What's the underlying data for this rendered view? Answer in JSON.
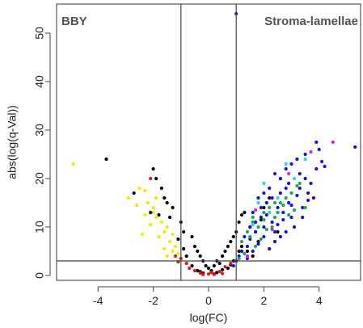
{
  "chart_data": {
    "type": "scatter",
    "title": "",
    "xlabel": "log(FC)",
    "ylabel": "abs(log(q-Val))",
    "xlim": [
      -5.5,
      5.5
    ],
    "ylim": [
      -1,
      56
    ],
    "x_ticks": [
      -4,
      -2,
      0,
      2,
      4
    ],
    "y_ticks": [
      0,
      10,
      20,
      30,
      40,
      50
    ],
    "x_tick_labels": [
      "-4",
      "-2",
      "0",
      "2",
      "4"
    ],
    "y_tick_labels": [
      "0",
      "10",
      "20",
      "30",
      "40",
      "50"
    ],
    "reference_lines": {
      "vertical": [
        -1,
        1
      ],
      "horizontal": [
        3
      ]
    },
    "region_labels": {
      "left": "BBY",
      "right": "Stroma-lamellae"
    },
    "grid": false,
    "colors": {
      "black": "#000000",
      "yellow": "#f2ea00",
      "red": "#e8141b",
      "blue": "#1010e0",
      "green": "#1aa84a",
      "cyan": "#22d8e0",
      "magenta": "#e020c8"
    },
    "series": [
      {
        "color_key": "yellow",
        "points": [
          [
            -4.9,
            23
          ],
          [
            -2.5,
            18
          ],
          [
            -2.3,
            17.5
          ],
          [
            -2.9,
            16
          ],
          [
            -2.2,
            15
          ],
          [
            -2.6,
            14.5
          ],
          [
            -2.0,
            14
          ],
          [
            -1.9,
            12
          ],
          [
            -1.7,
            11
          ],
          [
            -2.1,
            10.5
          ],
          [
            -1.5,
            10
          ],
          [
            -1.6,
            9
          ],
          [
            -2.4,
            8.5
          ],
          [
            -1.8,
            8
          ],
          [
            -1.4,
            7
          ],
          [
            -1.2,
            6
          ],
          [
            -1.6,
            5.5
          ],
          [
            -1.3,
            5
          ],
          [
            -1.1,
            4.5
          ],
          [
            -1.5,
            4
          ],
          [
            -2.0,
            13
          ],
          [
            -1.9,
            16
          ],
          [
            -2.3,
            12.5
          ],
          [
            -1.3,
            8.5
          ]
        ]
      },
      {
        "color_key": "black",
        "points": [
          [
            -3.7,
            24
          ],
          [
            -2.0,
            22
          ],
          [
            -1.9,
            20
          ],
          [
            -1.7,
            18
          ],
          [
            -2.7,
            17
          ],
          [
            -1.6,
            16
          ],
          [
            -1.5,
            15
          ],
          [
            -1.3,
            14
          ],
          [
            -2.1,
            13
          ],
          [
            -1.4,
            12
          ],
          [
            -1.0,
            11
          ],
          [
            -0.9,
            9
          ],
          [
            -0.6,
            8
          ],
          [
            -0.5,
            6
          ],
          [
            -0.4,
            5
          ],
          [
            -0.3,
            4
          ],
          [
            -0.2,
            3
          ],
          [
            -0.1,
            2
          ],
          [
            0.0,
            1.5
          ],
          [
            0.1,
            1
          ],
          [
            0.2,
            2
          ],
          [
            0.3,
            3
          ],
          [
            0.4,
            2.5
          ],
          [
            0.5,
            4
          ],
          [
            0.6,
            5
          ],
          [
            0.7,
            6
          ],
          [
            0.8,
            7
          ],
          [
            0.9,
            8
          ],
          [
            1.0,
            9
          ],
          [
            1.1,
            11
          ],
          [
            1.2,
            12.5
          ],
          [
            1.3,
            13
          ],
          [
            1.5,
            10
          ],
          [
            1.7,
            9
          ],
          [
            2.2,
            16
          ],
          [
            2.0,
            14
          ],
          [
            1.2,
            6
          ],
          [
            1.4,
            5
          ],
          [
            1.6,
            4
          ],
          [
            0.9,
            3
          ],
          [
            -0.8,
            4
          ],
          [
            -0.6,
            2
          ],
          [
            -0.4,
            1
          ],
          [
            -0.2,
            0.5
          ],
          [
            0.3,
            0.6
          ],
          [
            0.5,
            1.2
          ],
          [
            -0.9,
            5.5
          ],
          [
            -1.8,
            12.5
          ],
          [
            1.8,
            7
          ],
          [
            0.8,
            2.2
          ],
          [
            -1.1,
            7.5
          ],
          [
            2.5,
            9
          ],
          [
            1.9,
            11.5
          ],
          [
            0.2,
            0.3
          ],
          [
            -0.3,
            0.8
          ],
          [
            0.7,
            1.5
          ],
          [
            1.1,
            5
          ]
        ]
      },
      {
        "color_key": "red",
        "points": [
          [
            -2.1,
            20
          ],
          [
            -1.2,
            4
          ],
          [
            -1.0,
            3.5
          ],
          [
            -0.8,
            2.5
          ],
          [
            -0.7,
            1.5
          ],
          [
            -0.5,
            1
          ],
          [
            -0.3,
            0.5
          ],
          [
            0.0,
            0.3
          ],
          [
            0.2,
            0.2
          ],
          [
            0.4,
            0.8
          ],
          [
            0.6,
            1.8
          ],
          [
            0.8,
            2.5
          ],
          [
            -1.1,
            2.8
          ],
          [
            0.1,
            0.6
          ],
          [
            -0.2,
            0.2
          ],
          [
            0.5,
            0.4
          ]
        ]
      },
      {
        "color_key": "blue",
        "points": [
          [
            1.0,
            54
          ],
          [
            5.3,
            26.5
          ],
          [
            3.9,
            27.5
          ],
          [
            4.0,
            26
          ],
          [
            4.1,
            23.5
          ],
          [
            3.5,
            25
          ],
          [
            3.2,
            24
          ],
          [
            2.8,
            22
          ],
          [
            3.0,
            23
          ],
          [
            2.6,
            20
          ],
          [
            2.4,
            21
          ],
          [
            2.9,
            19
          ],
          [
            3.3,
            18
          ],
          [
            3.6,
            17
          ],
          [
            3.8,
            16
          ],
          [
            2.2,
            18
          ],
          [
            2.0,
            17
          ],
          [
            1.8,
            16
          ],
          [
            2.1,
            15
          ],
          [
            2.5,
            14
          ],
          [
            2.7,
            13
          ],
          [
            3.0,
            12
          ],
          [
            3.4,
            14
          ],
          [
            3.6,
            15.5
          ],
          [
            1.6,
            13
          ],
          [
            1.9,
            12
          ],
          [
            2.3,
            11
          ],
          [
            1.5,
            10
          ],
          [
            1.7,
            9
          ],
          [
            2.0,
            8
          ],
          [
            2.4,
            7
          ],
          [
            2.8,
            9
          ],
          [
            3.1,
            10
          ],
          [
            1.3,
            8
          ],
          [
            1.4,
            6
          ],
          [
            1.6,
            5
          ],
          [
            1.8,
            6.5
          ],
          [
            2.2,
            5.5
          ],
          [
            2.5,
            10.5
          ],
          [
            2.9,
            15
          ],
          [
            3.2,
            16.5
          ],
          [
            3.5,
            20
          ],
          [
            3.7,
            19
          ],
          [
            2.6,
            17
          ],
          [
            1.9,
            14
          ],
          [
            2.1,
            12.5
          ],
          [
            1.2,
            5
          ],
          [
            1.1,
            4
          ],
          [
            1.5,
            7.5
          ],
          [
            2.8,
            18
          ],
          [
            3.3,
            21
          ],
          [
            3.9,
            22
          ],
          [
            2.3,
            16
          ],
          [
            2.7,
            11.5
          ],
          [
            3.0,
            14.5
          ],
          [
            1.7,
            11
          ],
          [
            2.0,
            10
          ],
          [
            2.4,
            9
          ],
          [
            3.4,
            12
          ],
          [
            2.6,
            8
          ],
          [
            1.4,
            3.5
          ],
          [
            1.0,
            3
          ],
          [
            0.9,
            2
          ],
          [
            4.2,
            22.5
          ]
        ]
      },
      {
        "color_key": "green",
        "points": [
          [
            1.2,
            7
          ],
          [
            1.4,
            9
          ],
          [
            1.6,
            11
          ],
          [
            1.8,
            10
          ],
          [
            2.0,
            13
          ],
          [
            2.2,
            14
          ],
          [
            2.4,
            12
          ],
          [
            2.6,
            15
          ],
          [
            2.8,
            16
          ],
          [
            3.0,
            17
          ],
          [
            3.2,
            18.5
          ],
          [
            1.5,
            8
          ],
          [
            1.7,
            6
          ],
          [
            1.9,
            7.5
          ],
          [
            2.1,
            9.5
          ],
          [
            2.3,
            10
          ],
          [
            2.5,
            13
          ],
          [
            2.7,
            14.5
          ],
          [
            2.9,
            12.5
          ],
          [
            3.1,
            13.5
          ],
          [
            1.3,
            4.5
          ],
          [
            1.1,
            3.5
          ],
          [
            2.0,
            11.5
          ],
          [
            2.4,
            15
          ],
          [
            3.3,
            19
          ],
          [
            1.6,
            12
          ],
          [
            3.5,
            14
          ]
        ]
      },
      {
        "color_key": "cyan",
        "points": [
          [
            2.8,
            23
          ],
          [
            3.5,
            24
          ],
          [
            2.0,
            19
          ],
          [
            1.8,
            15
          ],
          [
            2.5,
            16
          ],
          [
            3.1,
            20
          ],
          [
            1.6,
            10.5
          ],
          [
            2.2,
            13
          ]
        ]
      },
      {
        "color_key": "magenta",
        "points": [
          [
            4.5,
            27.5
          ],
          [
            3.7,
            25.5
          ],
          [
            2.9,
            21
          ],
          [
            1.7,
            13.5
          ],
          [
            2.3,
            9.5
          ],
          [
            1.4,
            4
          ]
        ]
      }
    ]
  }
}
